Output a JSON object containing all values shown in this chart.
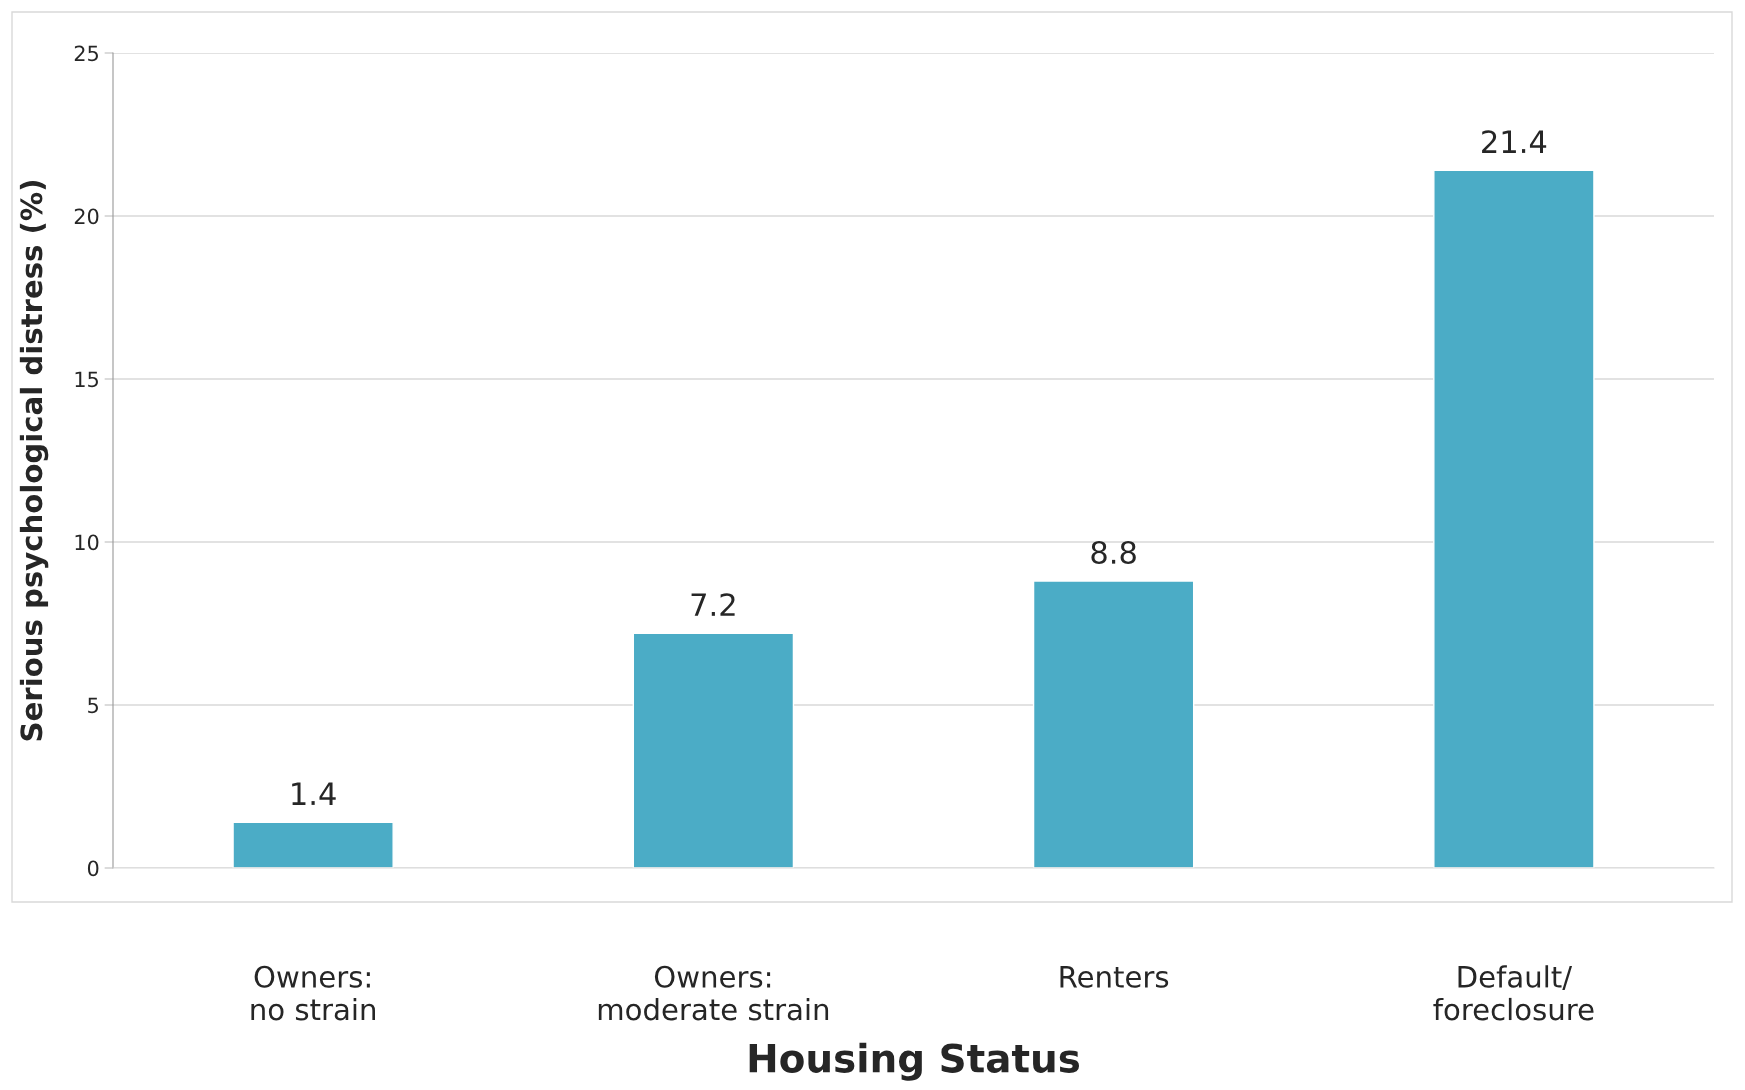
{
  "chart_data": {
    "type": "bar",
    "xlabel": "Housing Status",
    "ylabel": "Serious psychological distress (%)",
    "categories": [
      "Owners:\nno strain",
      "Owners:\nmoderate strain",
      "Renters",
      "Default/\nforeclosure"
    ],
    "values": [
      1.4,
      7.2,
      8.8,
      21.4
    ],
    "color": "#4bacc6",
    "ylim": [
      0,
      25
    ],
    "yticks": [
      0,
      5,
      10,
      15,
      20,
      25
    ],
    "grid": "y",
    "data_labels": true
  }
}
